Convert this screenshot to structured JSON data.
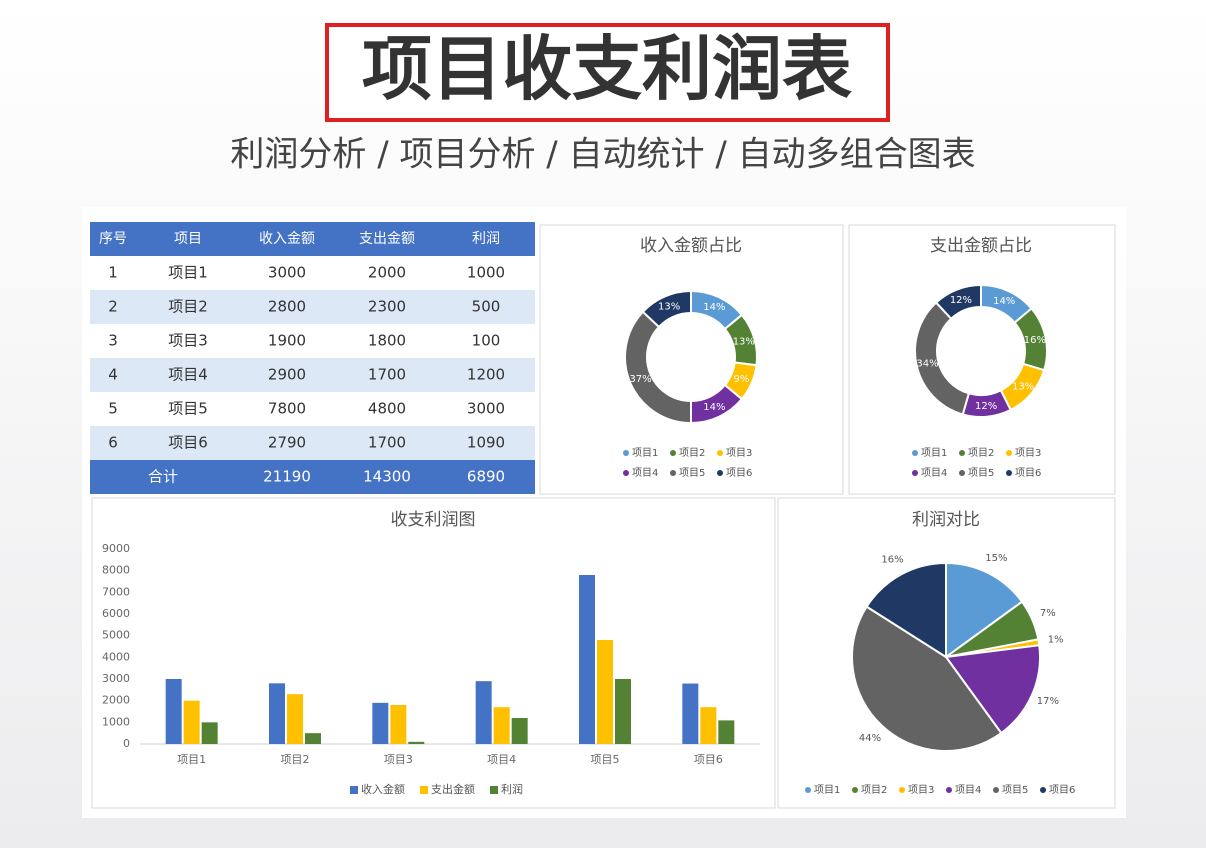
{
  "header": {
    "title": "项目收支利润表",
    "subtitle": "利润分析 / 项目分析 / 自动统计 / 自动多组合图表"
  },
  "table": {
    "columns": [
      "序号",
      "项目",
      "收入金额",
      "支出金额",
      "利润"
    ],
    "rows": [
      [
        1,
        "项目1",
        3000,
        2000,
        1000
      ],
      [
        2,
        "项目2",
        2800,
        2300,
        500
      ],
      [
        3,
        "项目3",
        1900,
        1800,
        100
      ],
      [
        4,
        "项目4",
        2900,
        1700,
        1200
      ],
      [
        5,
        "项目5",
        7800,
        4800,
        3000
      ],
      [
        6,
        "项目6",
        2790,
        1700,
        1090
      ]
    ],
    "total": [
      "合计",
      21190,
      14300,
      6890
    ]
  },
  "chart_data": [
    {
      "type": "donut",
      "title": "收入金额占比",
      "categories": [
        "项目1",
        "项目2",
        "项目3",
        "项目4",
        "项目5",
        "项目6"
      ],
      "values": [
        14,
        13,
        9,
        14,
        37,
        13
      ],
      "value_labels": [
        "14%",
        "13%",
        "9%",
        "14%",
        "37%",
        "13%"
      ],
      "colors": [
        "#5b9bd5",
        "#548235",
        "#ffc000",
        "#7030a0",
        "#636363",
        "#203864"
      ]
    },
    {
      "type": "donut",
      "title": "支出金额占比",
      "categories": [
        "项目1",
        "项目2",
        "项目3",
        "项目4",
        "项目5",
        "项目6"
      ],
      "values": [
        14,
        16,
        13,
        12,
        34,
        12
      ],
      "value_labels": [
        "14%",
        "16%",
        "13%",
        "12%",
        "34%",
        "12%"
      ],
      "colors": [
        "#5b9bd5",
        "#548235",
        "#ffc000",
        "#7030a0",
        "#636363",
        "#203864"
      ]
    },
    {
      "type": "bar",
      "title": "收支利润图",
      "categories": [
        "项目1",
        "项目2",
        "项目3",
        "项目4",
        "项目5",
        "项目6"
      ],
      "series": [
        {
          "name": "收入金额",
          "color": "#4472c4",
          "values": [
            3000,
            2800,
            1900,
            2900,
            7800,
            2790
          ]
        },
        {
          "name": "支出金额",
          "color": "#ffc000",
          "values": [
            2000,
            2300,
            1800,
            1700,
            4800,
            1700
          ]
        },
        {
          "name": "利润",
          "color": "#548235",
          "values": [
            1000,
            500,
            100,
            1200,
            3000,
            1090
          ]
        }
      ],
      "ylim": [
        0,
        9000
      ],
      "yticks": [
        0,
        1000,
        2000,
        3000,
        4000,
        5000,
        6000,
        7000,
        8000,
        9000
      ],
      "grid": false
    },
    {
      "type": "pie",
      "title": "利润对比",
      "categories": [
        "项目1",
        "项目2",
        "项目3",
        "项目4",
        "项目5",
        "项目6"
      ],
      "values": [
        15,
        7,
        1,
        17,
        44,
        16
      ],
      "value_labels": [
        "15%",
        "7%",
        "1%",
        "17%",
        "44%",
        "16%"
      ],
      "colors": [
        "#5b9bd5",
        "#548235",
        "#ffc000",
        "#7030a0",
        "#636363",
        "#203864"
      ]
    }
  ]
}
